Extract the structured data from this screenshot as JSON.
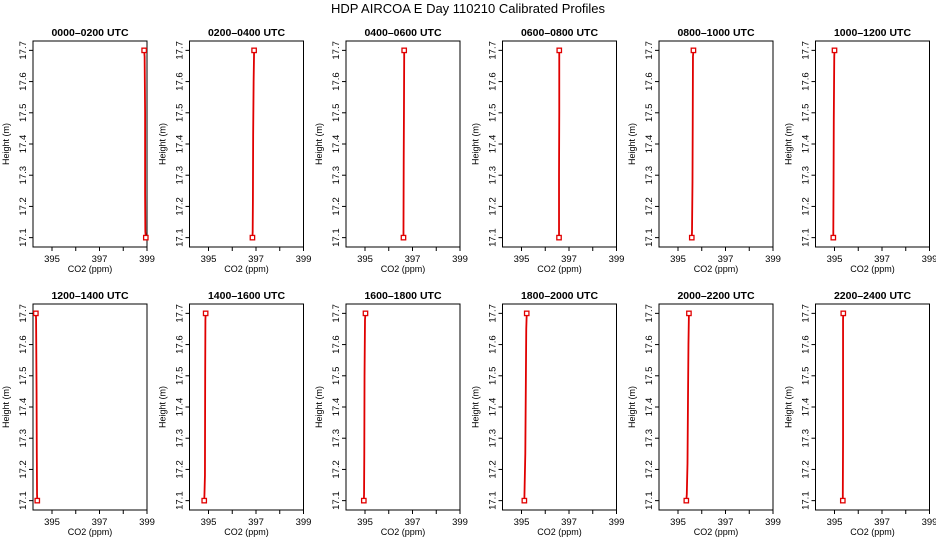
{
  "title": "HDP AIRCOA E  Day 110210  Calibrated Profiles",
  "colors": {
    "profile": "#e00000",
    "axes": "#000000",
    "background": "#ffffff"
  },
  "chart_data": [
    {
      "type": "line",
      "title": "0000–0200 UTC",
      "xlabel": "CO2 (ppm)",
      "ylabel": "Height (m)",
      "xlim": [
        394.2,
        399
      ],
      "ylim": [
        17.07,
        17.73
      ],
      "grid": false,
      "xticks": [
        "395",
        "397",
        "399"
      ],
      "yticks": [
        "17.1",
        "17.2",
        "17.3",
        "17.4",
        "17.5",
        "17.6",
        "17.7"
      ],
      "series": [
        {
          "x": [
            398.95,
            398.93,
            398.92,
            398.92,
            398.9,
            398.88
          ],
          "y": [
            17.1,
            17.12,
            17.24,
            17.5,
            17.68,
            17.7
          ]
        }
      ]
    },
    {
      "type": "line",
      "title": "0200–0400 UTC",
      "xlabel": "CO2 (ppm)",
      "ylabel": "Height (m)",
      "xlim": [
        394.2,
        399
      ],
      "ylim": [
        17.07,
        17.73
      ],
      "grid": false,
      "xticks": [
        "395",
        "397",
        "399"
      ],
      "yticks": [
        "17.1",
        "17.2",
        "17.3",
        "17.4",
        "17.5",
        "17.6",
        "17.7"
      ],
      "series": [
        {
          "x": [
            396.85,
            396.86,
            396.87,
            396.88,
            396.9,
            396.92
          ],
          "y": [
            17.1,
            17.12,
            17.22,
            17.43,
            17.6,
            17.7
          ]
        }
      ]
    },
    {
      "type": "line",
      "title": "0400–0600 UTC",
      "xlabel": "CO2 (ppm)",
      "ylabel": "Height (m)",
      "xlim": [
        394.2,
        399
      ],
      "ylim": [
        17.07,
        17.73
      ],
      "grid": false,
      "xticks": [
        "395",
        "397",
        "399"
      ],
      "yticks": [
        "17.1",
        "17.2",
        "17.3",
        "17.4",
        "17.5",
        "17.6",
        "17.7"
      ],
      "series": [
        {
          "x": [
            396.62,
            396.62,
            396.63,
            396.64,
            396.65,
            396.65
          ],
          "y": [
            17.1,
            17.12,
            17.35,
            17.5,
            17.68,
            17.7
          ]
        }
      ]
    },
    {
      "type": "line",
      "title": "0600–0800 UTC",
      "xlabel": "CO2 (ppm)",
      "ylabel": "Height (m)",
      "xlim": [
        394.2,
        399
      ],
      "ylim": [
        17.07,
        17.73
      ],
      "grid": false,
      "xticks": [
        "395",
        "397",
        "399"
      ],
      "yticks": [
        "17.1",
        "17.2",
        "17.3",
        "17.4",
        "17.5",
        "17.6",
        "17.7"
      ],
      "series": [
        {
          "x": [
            396.58,
            396.58,
            396.58,
            396.59,
            396.59,
            396.59
          ],
          "y": [
            17.1,
            17.12,
            17.3,
            17.5,
            17.68,
            17.7
          ]
        }
      ]
    },
    {
      "type": "line",
      "title": "0800–1000 UTC",
      "xlabel": "CO2 (ppm)",
      "ylabel": "Height (m)",
      "xlim": [
        394.2,
        399
      ],
      "ylim": [
        17.07,
        17.73
      ],
      "grid": false,
      "xticks": [
        "395",
        "397",
        "399"
      ],
      "yticks": [
        "17.1",
        "17.2",
        "17.3",
        "17.4",
        "17.5",
        "17.6",
        "17.7"
      ],
      "series": [
        {
          "x": [
            395.58,
            395.59,
            395.61,
            395.62,
            395.63,
            395.65
          ],
          "y": [
            17.1,
            17.12,
            17.28,
            17.47,
            17.68,
            17.7
          ]
        }
      ]
    },
    {
      "type": "line",
      "title": "1000–1200 UTC",
      "xlabel": "CO2 (ppm)",
      "ylabel": "Height (m)",
      "xlim": [
        394.2,
        399
      ],
      "ylim": [
        17.07,
        17.73
      ],
      "grid": false,
      "xticks": [
        "395",
        "397",
        "399"
      ],
      "yticks": [
        "17.1",
        "17.2",
        "17.3",
        "17.4",
        "17.5",
        "17.6",
        "17.7"
      ],
      "series": [
        {
          "x": [
            394.95,
            394.95,
            394.96,
            394.97,
            394.99,
            395.0
          ],
          "y": [
            17.1,
            17.12,
            17.28,
            17.48,
            17.68,
            17.7
          ]
        }
      ]
    },
    {
      "type": "line",
      "title": "1200–1400 UTC",
      "xlabel": "CO2 (ppm)",
      "ylabel": "Height (m)",
      "xlim": [
        394.2,
        399
      ],
      "ylim": [
        17.07,
        17.73
      ],
      "grid": false,
      "xticks": [
        "395",
        "397",
        "399"
      ],
      "yticks": [
        "17.1",
        "17.2",
        "17.3",
        "17.4",
        "17.5",
        "17.6",
        "17.7"
      ],
      "series": [
        {
          "x": [
            394.38,
            394.37,
            394.36,
            394.35,
            394.33,
            394.32
          ],
          "y": [
            17.1,
            17.12,
            17.25,
            17.45,
            17.68,
            17.7
          ]
        }
      ]
    },
    {
      "type": "line",
      "title": "1400–1600 UTC",
      "xlabel": "CO2 (ppm)",
      "ylabel": "Height (m)",
      "xlim": [
        394.2,
        399
      ],
      "ylim": [
        17.07,
        17.73
      ],
      "grid": false,
      "xticks": [
        "395",
        "397",
        "399"
      ],
      "yticks": [
        "17.1",
        "17.2",
        "17.3",
        "17.4",
        "17.5",
        "17.6",
        "17.7"
      ],
      "series": [
        {
          "x": [
            394.82,
            394.83,
            394.85,
            394.86,
            394.87,
            394.88
          ],
          "y": [
            17.1,
            17.12,
            17.18,
            17.5,
            17.68,
            17.7
          ]
        }
      ]
    },
    {
      "type": "line",
      "title": "1600–1800 UTC",
      "xlabel": "CO2 (ppm)",
      "ylabel": "Height (m)",
      "xlim": [
        394.2,
        399
      ],
      "ylim": [
        17.07,
        17.73
      ],
      "grid": false,
      "xticks": [
        "395",
        "397",
        "399"
      ],
      "yticks": [
        "17.1",
        "17.2",
        "17.3",
        "17.4",
        "17.5",
        "17.6",
        "17.7"
      ],
      "series": [
        {
          "x": [
            394.95,
            394.96,
            394.97,
            394.98,
            395.0,
            395.02
          ],
          "y": [
            17.1,
            17.12,
            17.25,
            17.5,
            17.68,
            17.7
          ]
        }
      ]
    },
    {
      "type": "line",
      "title": "1800–2000 UTC",
      "xlabel": "CO2 (ppm)",
      "ylabel": "Height (m)",
      "xlim": [
        394.2,
        399
      ],
      "ylim": [
        17.07,
        17.73
      ],
      "grid": false,
      "xticks": [
        "395",
        "397",
        "399"
      ],
      "yticks": [
        "17.1",
        "17.2",
        "17.3",
        "17.4",
        "17.5",
        "17.6",
        "17.7"
      ],
      "series": [
        {
          "x": [
            395.12,
            395.13,
            395.16,
            395.18,
            395.2,
            395.22
          ],
          "y": [
            17.1,
            17.14,
            17.25,
            17.45,
            17.65,
            17.7
          ]
        }
      ]
    },
    {
      "type": "line",
      "title": "2000–2200 UTC",
      "xlabel": "CO2 (ppm)",
      "ylabel": "Height (m)",
      "xlim": [
        394.2,
        399
      ],
      "ylim": [
        17.07,
        17.73
      ],
      "grid": false,
      "xticks": [
        "395",
        "397",
        "399"
      ],
      "yticks": [
        "17.1",
        "17.2",
        "17.3",
        "17.4",
        "17.5",
        "17.6",
        "17.7"
      ],
      "series": [
        {
          "x": [
            395.35,
            395.37,
            395.4,
            395.42,
            395.44,
            395.46
          ],
          "y": [
            17.1,
            17.12,
            17.22,
            17.42,
            17.6,
            17.7
          ]
        }
      ]
    },
    {
      "type": "line",
      "title": "2200–2400 UTC",
      "xlabel": "CO2 (ppm)",
      "ylabel": "Height (m)",
      "xlim": [
        394.2,
        399
      ],
      "ylim": [
        17.07,
        17.73
      ],
      "grid": false,
      "xticks": [
        "395",
        "397",
        "399"
      ],
      "yticks": [
        "17.1",
        "17.2",
        "17.3",
        "17.4",
        "17.5",
        "17.6",
        "17.7"
      ],
      "series": [
        {
          "x": [
            395.35,
            395.35,
            395.36,
            395.36,
            395.36,
            395.37
          ],
          "y": [
            17.1,
            17.12,
            17.3,
            17.5,
            17.68,
            17.7
          ]
        }
      ]
    }
  ]
}
